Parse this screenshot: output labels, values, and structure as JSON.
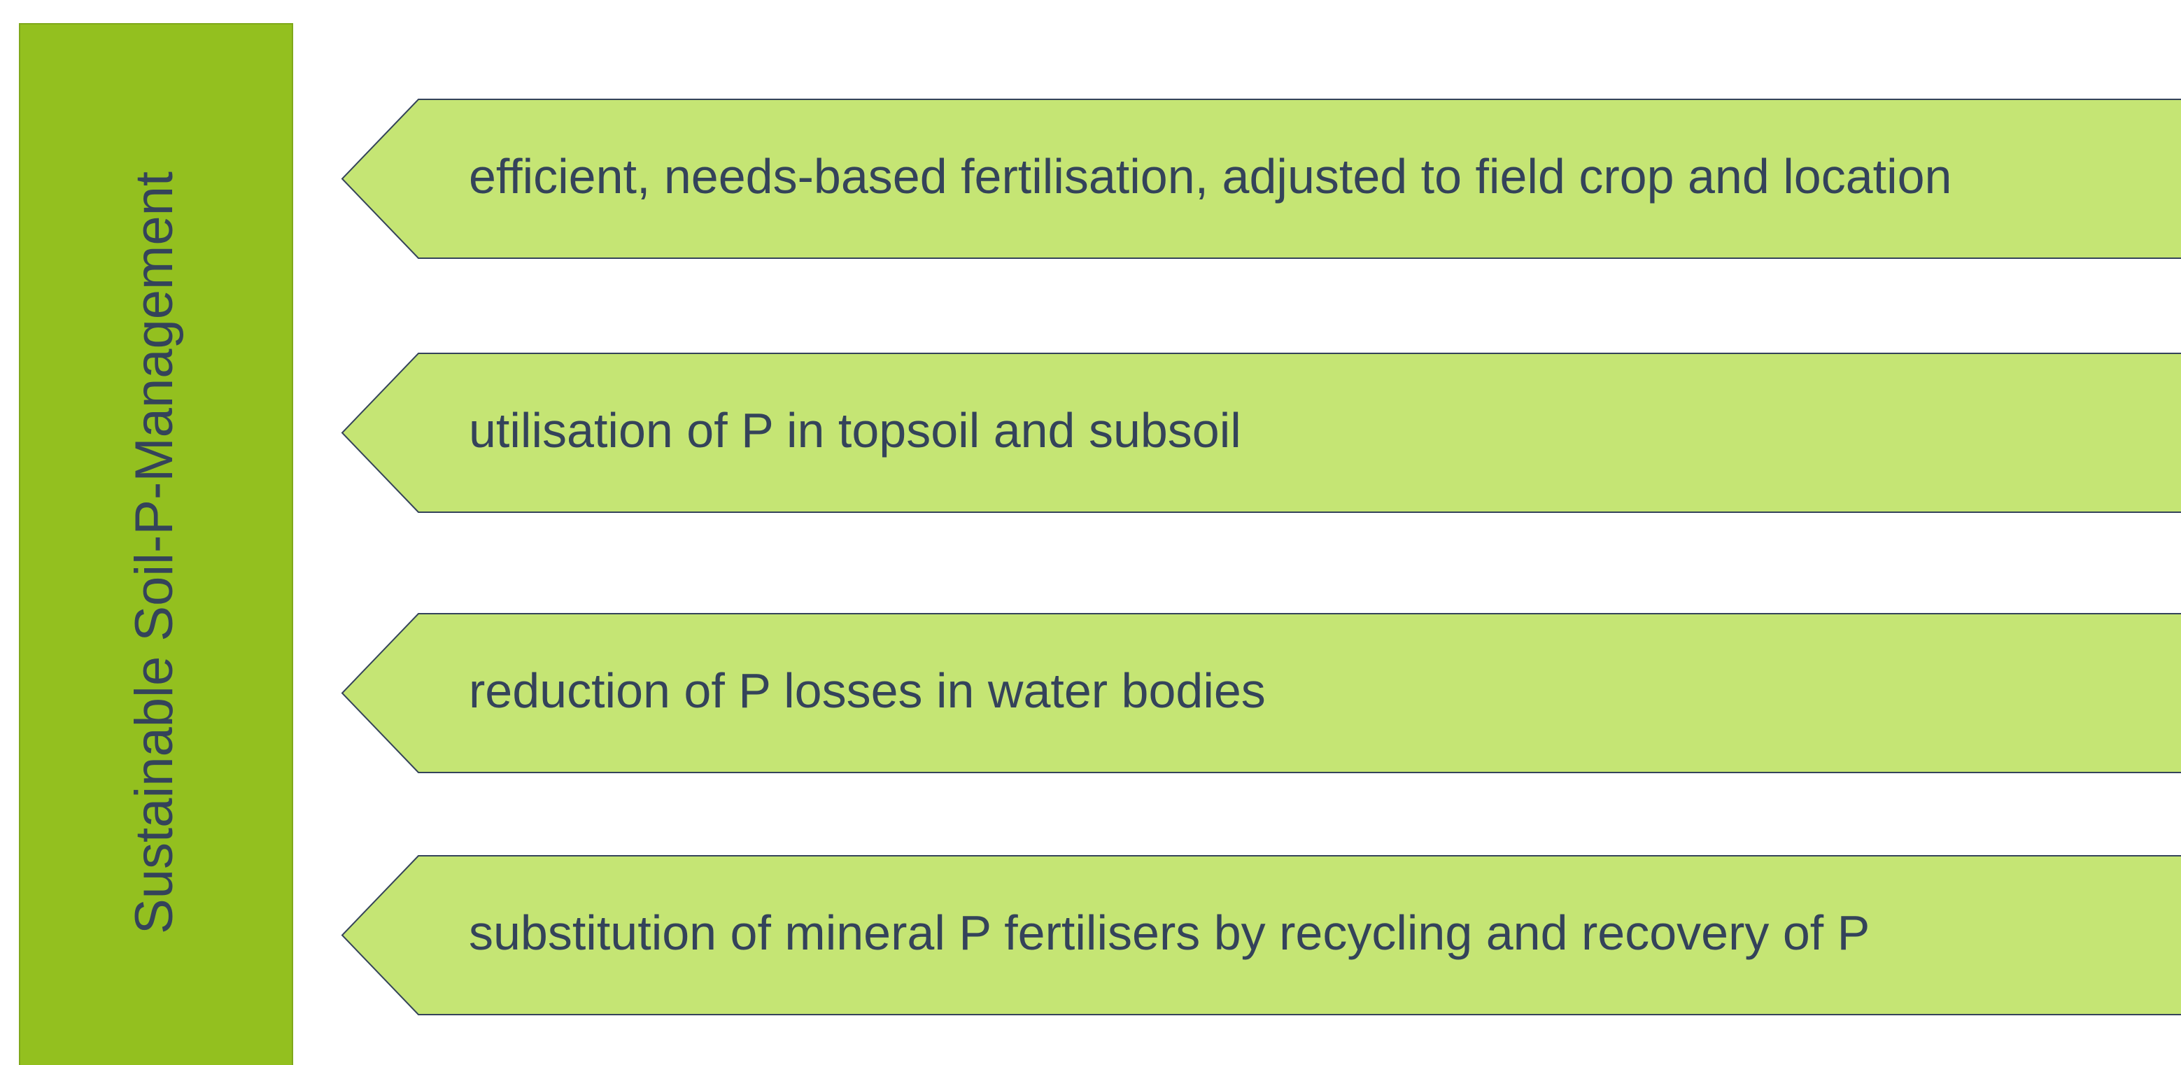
{
  "title": "Sustainable Soil-P-Management",
  "items": [
    "efficient, needs-based fertilisation, adjusted to field crop and location",
    "utilisation of P in topsoil and subsoil",
    "reduction of P losses in water bodies",
    "substitution of mineral P fertilisers by recycling and recovery of P"
  ]
}
